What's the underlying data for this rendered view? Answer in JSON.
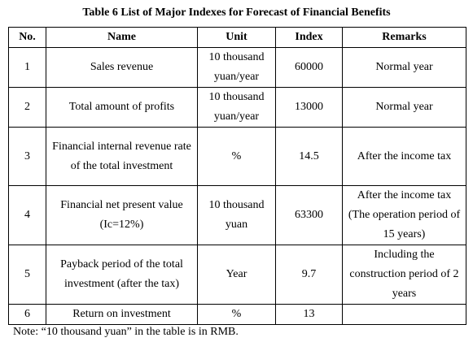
{
  "caption": "Table 6 List of Major Indexes for Forecast of Financial Benefits",
  "table": {
    "headers": [
      "No.",
      "Name",
      "Unit",
      "Index",
      "Remarks"
    ],
    "rows": [
      {
        "no": "1",
        "name": "Sales revenue",
        "unit": "10 thousand yuan/year",
        "index": "60000",
        "remarks": "Normal year"
      },
      {
        "no": "2",
        "name": "Total amount of profits",
        "unit": "10 thousand yuan/year",
        "index": "13000",
        "remarks": "Normal year"
      },
      {
        "no": "3",
        "name": "Financial internal revenue rate of the total investment",
        "unit": "%",
        "index": "14.5",
        "remarks": "After the income tax"
      },
      {
        "no": "4",
        "name": "Financial net present value (Ic=12%)",
        "unit": "10 thousand yuan",
        "index": "63300",
        "remarks": "After the income tax (The operation period of 15 years)"
      },
      {
        "no": "5",
        "name": "Payback period of the total investment (after the tax)",
        "unit": "Year",
        "index": "9.7",
        "remarks": "Including the construction period of 2 years"
      },
      {
        "no": "6",
        "name": "Return on investment",
        "unit": "%",
        "index": "13",
        "remarks": ""
      }
    ]
  },
  "note": "Note: “10 thousand yuan” in the table is in RMB."
}
